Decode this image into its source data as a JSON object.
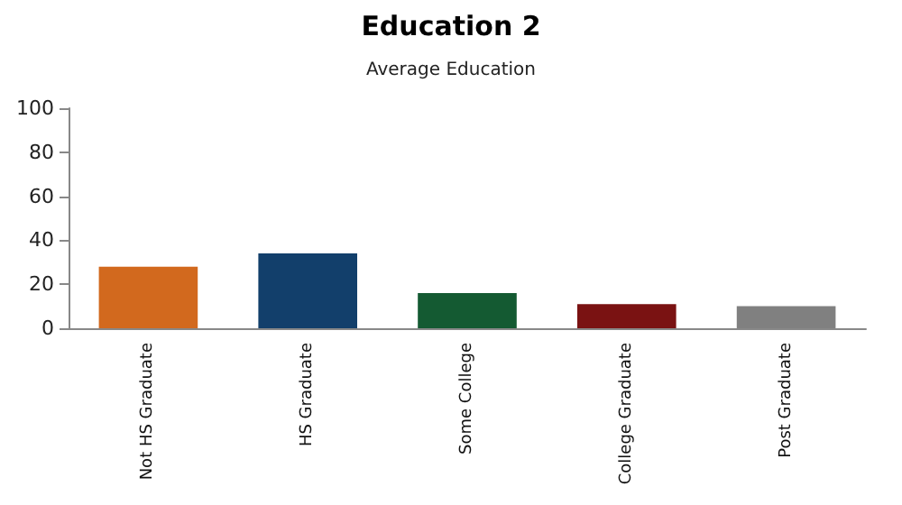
{
  "chart_data": {
    "type": "bar",
    "title": "Education 2",
    "subtitle": "Average Education",
    "categories": [
      "Not HS Graduate",
      "HS Graduate",
      "Some College",
      "College Graduate",
      "Post Graduate"
    ],
    "values": [
      28,
      34,
      16,
      11,
      10
    ],
    "colors": [
      "#d2691e",
      "#123f6b",
      "#145a32",
      "#7a1212",
      "#808080"
    ],
    "ylim": [
      0,
      100
    ],
    "yticks": [
      0,
      20,
      40,
      60,
      80,
      100
    ],
    "grid": false
  }
}
